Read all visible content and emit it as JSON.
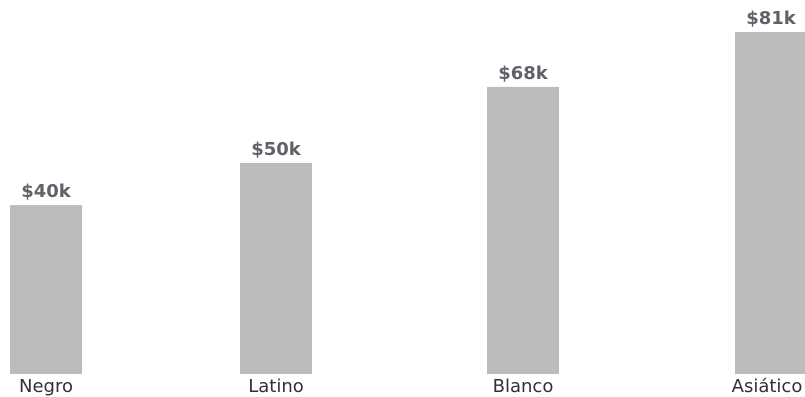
{
  "chart_data": {
    "type": "bar",
    "categories": [
      "Negro",
      "Latino",
      "Blanco",
      "Asiático"
    ],
    "values": [
      40,
      50,
      68,
      81
    ],
    "value_labels": [
      "$40k",
      "$50k",
      "$68k",
      "$81k"
    ],
    "ylim": [
      0,
      81
    ],
    "grid": false,
    "legend": "none",
    "colors": {
      "bar": "#bcbcbd",
      "value_label": "#5f6268",
      "category_label": "#2f3135"
    }
  }
}
